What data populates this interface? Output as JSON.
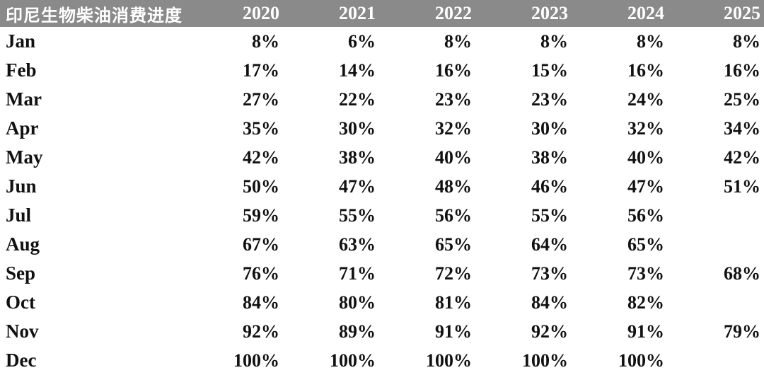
{
  "colors": {
    "header_bg": "#8a8a8a",
    "header_text": "#ffffff",
    "body_text": "#111111",
    "page_bg": "#ffffff"
  },
  "table": {
    "title": "印尼生物柴油消费进度",
    "years": [
      "2020",
      "2021",
      "2022",
      "2023",
      "2024",
      "2025"
    ],
    "rows": [
      {
        "month": "Jan",
        "values": [
          "8%",
          "6%",
          "8%",
          "8%",
          "8%",
          "8%"
        ]
      },
      {
        "month": "Feb",
        "values": [
          "17%",
          "14%",
          "16%",
          "15%",
          "16%",
          "16%"
        ]
      },
      {
        "month": "Mar",
        "values": [
          "27%",
          "22%",
          "23%",
          "23%",
          "24%",
          "25%"
        ]
      },
      {
        "month": "Apr",
        "values": [
          "35%",
          "30%",
          "32%",
          "30%",
          "32%",
          "34%"
        ]
      },
      {
        "month": "May",
        "values": [
          "42%",
          "38%",
          "40%",
          "38%",
          "40%",
          "42%"
        ]
      },
      {
        "month": "Jun",
        "values": [
          "50%",
          "47%",
          "48%",
          "46%",
          "47%",
          "51%"
        ]
      },
      {
        "month": "Jul",
        "values": [
          "59%",
          "55%",
          "56%",
          "55%",
          "56%",
          ""
        ]
      },
      {
        "month": "Aug",
        "values": [
          "67%",
          "63%",
          "65%",
          "64%",
          "65%",
          ""
        ]
      },
      {
        "month": "Sep",
        "values": [
          "76%",
          "71%",
          "72%",
          "73%",
          "73%",
          "68%"
        ]
      },
      {
        "month": "Oct",
        "values": [
          "84%",
          "80%",
          "81%",
          "84%",
          "82%",
          ""
        ]
      },
      {
        "month": "Nov",
        "values": [
          "92%",
          "89%",
          "91%",
          "92%",
          "91%",
          "79%"
        ]
      },
      {
        "month": "Dec",
        "values": [
          "100%",
          "100%",
          "100%",
          "100%",
          "100%",
          ""
        ]
      }
    ]
  },
  "chart_data": {
    "type": "table",
    "title": "印尼生物柴油消费进度",
    "unit": "percent",
    "columns": [
      "Month",
      "2020",
      "2021",
      "2022",
      "2023",
      "2024",
      "2025"
    ],
    "categories": [
      "Jan",
      "Feb",
      "Mar",
      "Apr",
      "May",
      "Jun",
      "Jul",
      "Aug",
      "Sep",
      "Oct",
      "Nov",
      "Dec"
    ],
    "series": [
      {
        "name": "2020",
        "values": [
          8,
          17,
          27,
          35,
          42,
          50,
          59,
          67,
          76,
          84,
          92,
          100
        ]
      },
      {
        "name": "2021",
        "values": [
          6,
          14,
          22,
          30,
          38,
          47,
          55,
          63,
          71,
          80,
          89,
          100
        ]
      },
      {
        "name": "2022",
        "values": [
          8,
          16,
          23,
          32,
          40,
          48,
          56,
          65,
          72,
          81,
          91,
          100
        ]
      },
      {
        "name": "2023",
        "values": [
          8,
          15,
          23,
          30,
          38,
          46,
          55,
          64,
          73,
          84,
          92,
          100
        ]
      },
      {
        "name": "2024",
        "values": [
          8,
          16,
          24,
          32,
          40,
          47,
          56,
          65,
          73,
          82,
          91,
          100
        ]
      },
      {
        "name": "2025",
        "values": [
          8,
          16,
          25,
          34,
          42,
          51,
          null,
          null,
          68,
          null,
          79,
          null
        ]
      }
    ]
  }
}
